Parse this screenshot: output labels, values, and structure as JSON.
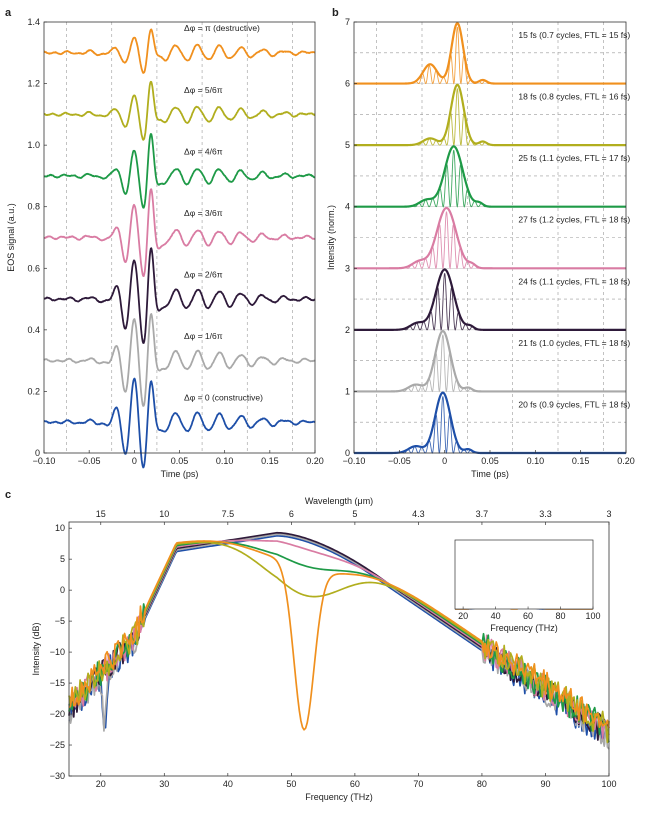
{
  "figure": {
    "panel_labels": [
      "a",
      "b",
      "c"
    ],
    "colors": {
      "orange": "#F0901E",
      "olive": "#B1AE1E",
      "green": "#1E9A47",
      "pink": "#D97CA3",
      "purple": "#2E1A3A",
      "gray": "#A9A9A9",
      "blue": "#1E4FA8"
    }
  },
  "chart_data": [
    {
      "id": "panel-a",
      "type": "line",
      "title": "",
      "xlabel": "Time (ps)",
      "ylabel": "EOS signal (a.u.)",
      "xlim": [
        -0.1,
        0.2
      ],
      "ylim": [
        0.0,
        1.4
      ],
      "xticks": [
        "−0.10",
        "−0.05",
        "0",
        "0.05",
        "0.10",
        "0.15",
        "0.20"
      ],
      "xtick_values": [
        -0.1,
        -0.05,
        0,
        0.05,
        0.1,
        0.15,
        0.2
      ],
      "yticks": [
        "0",
        "0.2",
        "0.4",
        "0.6",
        "0.8",
        "1.0",
        "1.2",
        "1.4"
      ],
      "ytick_values": [
        0,
        0.2,
        0.4,
        0.6,
        0.8,
        1.0,
        1.2,
        1.4
      ],
      "vgrid_dashed": [
        -0.075,
        -0.025,
        0.025,
        0.075,
        0.125,
        0.175
      ],
      "series": [
        {
          "name": "Δφ = π (destructive)",
          "offset": 1.3,
          "color": "orange",
          "amps": [
            0.035,
            0.05,
            0.025
          ]
        },
        {
          "name": "Δφ = 5/6π",
          "offset": 1.1,
          "color": "olive",
          "amps": [
            0.045,
            0.08,
            0.025
          ]
        },
        {
          "name": "Δφ = 4/6π",
          "offset": 0.9,
          "color": "green",
          "amps": [
            0.065,
            0.105,
            0.025
          ]
        },
        {
          "name": "Δφ = 3/6π",
          "offset": 0.7,
          "color": "pink",
          "amps": [
            0.09,
            0.115,
            0.025
          ]
        },
        {
          "name": "Δφ = 2/6π",
          "offset": 0.5,
          "color": "purple",
          "amps": [
            0.11,
            0.11,
            0.03
          ]
        },
        {
          "name": "Δφ = 1/6π",
          "offset": 0.3,
          "color": "gray",
          "amps": [
            0.12,
            0.09,
            0.03
          ]
        },
        {
          "name": "Δφ = 0 (constructive)",
          "offset": 0.1,
          "color": "blue",
          "amps": [
            0.125,
            0.07,
            0.03
          ]
        }
      ]
    },
    {
      "id": "panel-b",
      "type": "line",
      "title": "",
      "xlabel": "Time (ps)",
      "ylabel": "Intensity (norm.)",
      "xlim": [
        -0.1,
        0.2
      ],
      "ylim": [
        0,
        7
      ],
      "xticks": [
        "−0.10",
        "−0.05",
        "0",
        "0.05",
        "0.10",
        "0.15",
        "0.20"
      ],
      "xtick_values": [
        -0.1,
        -0.05,
        0,
        0.05,
        0.1,
        0.15,
        0.2
      ],
      "yticks": [
        "0",
        "1",
        "2",
        "3",
        "4",
        "5",
        "6",
        "7"
      ],
      "ytick_values": [
        0,
        1,
        2,
        3,
        4,
        5,
        6,
        7
      ],
      "vgrid_dashed": [
        -0.075,
        -0.025,
        0.025,
        0.075,
        0.125,
        0.175
      ],
      "series": [
        {
          "name": "15 fs (0.7 cycles, FTL = 15 fs)",
          "offset": 6,
          "color": "orange",
          "peak_t": 0.014,
          "width": 0.009
        },
        {
          "name": "18 fs (0.8 cycles, FTL = 16 fs)",
          "offset": 5,
          "color": "olive",
          "peak_t": 0.014,
          "width": 0.01
        },
        {
          "name": "25 fs (1.1 cycles, FTL = 17 fs)",
          "offset": 4,
          "color": "green",
          "peak_t": 0.01,
          "width": 0.014
        },
        {
          "name": "27 fs (1.2 cycles, FTL = 18 fs)",
          "offset": 3,
          "color": "pink",
          "peak_t": 0.002,
          "width": 0.015
        },
        {
          "name": "24 fs (1.1 cycles, FTL = 18 fs)",
          "offset": 2,
          "color": "purple",
          "peak_t": 0.0,
          "width": 0.014
        },
        {
          "name": "21 fs (1.0 cycles, FTL = 18 fs)",
          "offset": 1,
          "color": "gray",
          "peak_t": -0.002,
          "width": 0.012
        },
        {
          "name": "20 fs (0.9 cycles, FTL = 18 fs)",
          "offset": 0,
          "color": "blue",
          "peak_t": -0.002,
          "width": 0.012
        }
      ]
    },
    {
      "id": "panel-c",
      "type": "line",
      "title": "",
      "xlabel": "Frequency (THz)",
      "ylabel": "Intensity (dB)",
      "top_xlabel": "Wavelength (μm)",
      "xlim": [
        15,
        100
      ],
      "ylim": [
        -30,
        11
      ],
      "xticks": [
        "20",
        "30",
        "40",
        "50",
        "60",
        "70",
        "80",
        "90",
        "100"
      ],
      "xtick_values": [
        20,
        30,
        40,
        50,
        60,
        70,
        80,
        90,
        100
      ],
      "yticks": [
        "−30",
        "−25",
        "−20",
        "−15",
        "−10",
        "−5",
        "0",
        "5",
        "10"
      ],
      "ytick_values": [
        -30,
        -25,
        -20,
        -15,
        -10,
        -5,
        0,
        5,
        10
      ],
      "top_ticks": [
        "15",
        "10",
        "7.5",
        "6",
        "5",
        "4.3",
        "3.7",
        "3.3",
        "3"
      ],
      "top_tick_freqs": [
        20,
        30,
        40,
        50,
        60,
        70,
        80,
        90,
        100
      ],
      "series": [
        {
          "name": "Δφ = 0",
          "color": "blue",
          "notch_f": null,
          "notch_depth": 0
        },
        {
          "name": "Δφ = 1/6π",
          "color": "gray",
          "notch_f": null,
          "notch_depth": 0
        },
        {
          "name": "Δφ = 2/6π",
          "color": "purple",
          "notch_f": null,
          "notch_depth": 0
        },
        {
          "name": "Δφ = 3/6π",
          "color": "pink",
          "notch_f": 52,
          "notch_depth": 2
        },
        {
          "name": "Δφ = 4/6π",
          "color": "green",
          "notch_f": 52,
          "notch_depth": 5
        },
        {
          "name": "Δφ = 5/6π",
          "color": "olive",
          "notch_f": 52,
          "notch_depth": 10
        },
        {
          "name": "Δφ = π",
          "color": "orange",
          "notch_f": 52,
          "notch_depth": 26
        }
      ],
      "inset": {
        "xlabel": "Frequency (THz)",
        "xlim": [
          15,
          100
        ],
        "xticks": [
          "20",
          "40",
          "60",
          "80",
          "100"
        ],
        "xtick_values": [
          20,
          40,
          60,
          80,
          100
        ],
        "series": [
          {
            "name": "Δφ = 0",
            "color": "blue"
          },
          {
            "name": "Δφ = π",
            "color": "orange"
          }
        ]
      }
    }
  ]
}
